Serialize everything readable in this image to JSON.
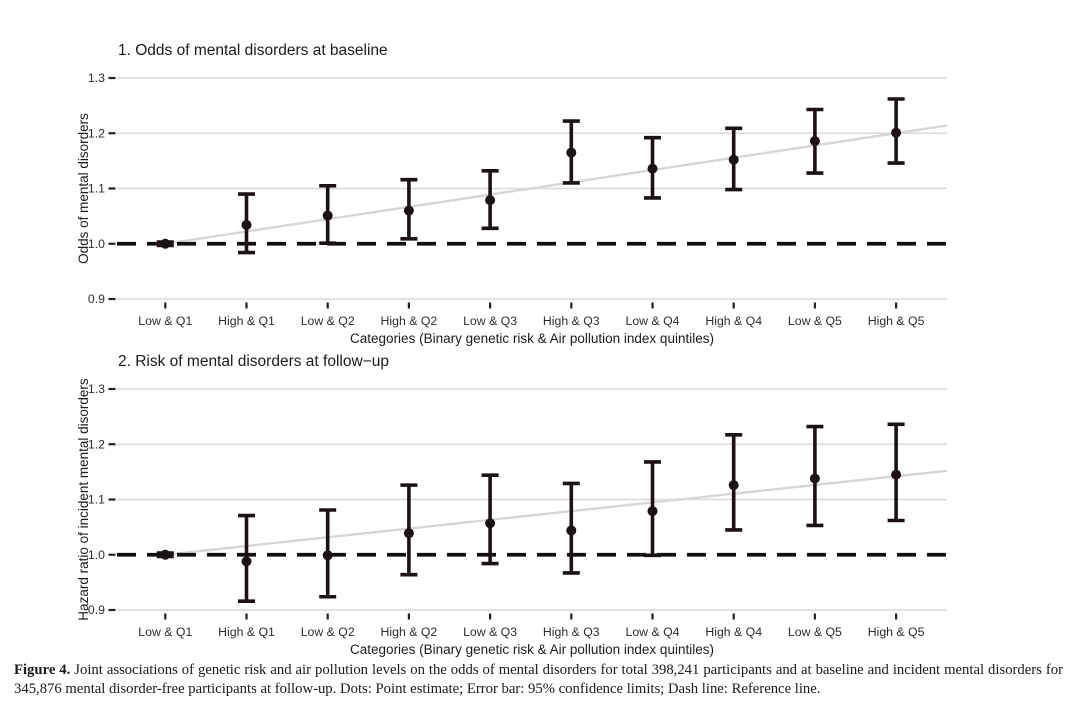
{
  "chart_data": [
    {
      "type": "scatter",
      "title": "1. Odds of mental disorders at baseline",
      "xlabel": "Categories (Binary genetic risk & Air pollution index quintiles)",
      "ylabel": "Odds of mental disorders",
      "categories": [
        "Low & Q1",
        "High & Q1",
        "Low & Q2",
        "High & Q2",
        "Low & Q3",
        "High & Q3",
        "Low & Q4",
        "High & Q4",
        "Low & Q5",
        "High & Q5"
      ],
      "yticks": [
        1.3,
        1.2,
        1.1,
        1.0,
        0.9
      ],
      "ylim": [
        0.88,
        1.32
      ],
      "grid": true,
      "legend": "none",
      "reference_line": 1.0,
      "trend": {
        "start_y": 1.0,
        "end_y": 1.214
      },
      "series": [
        {
          "name": "Point estimate (95% confidence limits)",
          "estimates": [
            1.0,
            1.034,
            1.051,
            1.06,
            1.079,
            1.165,
            1.136,
            1.152,
            1.186,
            1.201
          ],
          "ci_low": [
            0.997,
            0.984,
            1.001,
            1.009,
            1.028,
            1.11,
            1.083,
            1.098,
            1.128,
            1.146
          ],
          "ci_high": [
            1.003,
            1.09,
            1.105,
            1.116,
            1.132,
            1.222,
            1.192,
            1.209,
            1.243,
            1.262
          ]
        }
      ]
    },
    {
      "type": "scatter",
      "title": "2. Risk of mental disorders at follow−up",
      "xlabel": "Categories (Binary genetic risk & Air pollution index quintiles)",
      "ylabel": "Hazard ratio of incident mental disorders",
      "categories": [
        "Low & Q1",
        "High & Q1",
        "Low & Q2",
        "High & Q2",
        "Low & Q3",
        "High & Q3",
        "Low & Q4",
        "High & Q4",
        "Low & Q5",
        "High & Q5"
      ],
      "yticks": [
        1.3,
        1.2,
        1.1,
        1.0,
        0.9
      ],
      "ylim": [
        0.88,
        1.32
      ],
      "grid": true,
      "legend": "none",
      "reference_line": 1.0,
      "trend": {
        "start_y": 1.0,
        "end_y": 1.152
      },
      "series": [
        {
          "name": "Point estimate (95% confidence limits)",
          "estimates": [
            1.0,
            0.988,
            0.999,
            1.039,
            1.057,
            1.044,
            1.079,
            1.126,
            1.138,
            1.145
          ],
          "ci_low": [
            0.997,
            0.916,
            0.924,
            0.964,
            0.984,
            0.967,
            0.999,
            1.045,
            1.053,
            1.062
          ],
          "ci_high": [
            1.003,
            1.071,
            1.081,
            1.126,
            1.144,
            1.129,
            1.168,
            1.217,
            1.232,
            1.236
          ]
        }
      ]
    }
  ],
  "caption": {
    "label": "Figure 4.",
    "text": "Joint associations of genetic risk and air pollution levels on the odds of mental disorders for total 398,241 participants and at baseline and incident mental disorders for 345,876 mental disorder-free participants at follow-up. Dots: Point estimate; Error bar: 95% confidence limits; Dash line: Reference line."
  },
  "colors": {
    "background": "#ffffff",
    "point": "#1b1216",
    "grid": "#dedede",
    "trend": "#d6d6d6",
    "reference": "#101010",
    "tick_text": "#3d3d3d",
    "title_text": "#1c1c1c"
  }
}
